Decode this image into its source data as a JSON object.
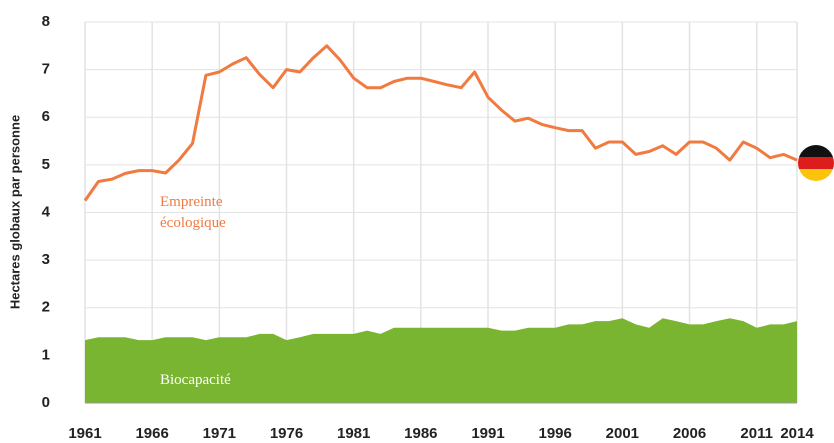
{
  "chart_data": {
    "type": "line",
    "y_label": "Hectares globaux par personne",
    "x": [
      1961,
      1962,
      1963,
      1964,
      1965,
      1966,
      1967,
      1968,
      1969,
      1970,
      1971,
      1972,
      1973,
      1974,
      1975,
      1976,
      1977,
      1978,
      1979,
      1980,
      1981,
      1982,
      1983,
      1984,
      1985,
      1986,
      1987,
      1988,
      1989,
      1990,
      1991,
      1992,
      1993,
      1994,
      1995,
      1996,
      1997,
      1998,
      1999,
      2000,
      2001,
      2002,
      2003,
      2004,
      2005,
      2006,
      2007,
      2008,
      2009,
      2010,
      2011,
      2012,
      2013,
      2014
    ],
    "series": [
      {
        "name": "Empreinte écologique",
        "color": "#f07a3f",
        "fill": false,
        "values": [
          4.25,
          4.65,
          4.7,
          4.82,
          4.88,
          4.88,
          4.83,
          5.1,
          5.45,
          6.88,
          6.95,
          7.12,
          7.25,
          6.9,
          6.62,
          7.0,
          6.95,
          7.25,
          7.5,
          7.2,
          6.82,
          6.62,
          6.62,
          6.75,
          6.82,
          6.82,
          6.75,
          6.68,
          6.62,
          6.95,
          6.42,
          6.15,
          5.92,
          5.98,
          5.85,
          5.78,
          5.72,
          5.72,
          5.35,
          5.48,
          5.48,
          5.22,
          5.28,
          5.4,
          5.22,
          5.48,
          5.48,
          5.35,
          5.1,
          5.48,
          5.35,
          5.15,
          5.22,
          5.1
        ]
      },
      {
        "name": "Biocapacité",
        "color": "#7ab532",
        "fill": true,
        "values": [
          1.32,
          1.38,
          1.38,
          1.38,
          1.32,
          1.32,
          1.38,
          1.38,
          1.38,
          1.32,
          1.38,
          1.38,
          1.38,
          1.45,
          1.45,
          1.32,
          1.38,
          1.45,
          1.45,
          1.45,
          1.45,
          1.52,
          1.45,
          1.58,
          1.58,
          1.58,
          1.58,
          1.58,
          1.58,
          1.58,
          1.58,
          1.52,
          1.52,
          1.58,
          1.58,
          1.58,
          1.65,
          1.65,
          1.72,
          1.72,
          1.78,
          1.65,
          1.58,
          1.78,
          1.72,
          1.65,
          1.65,
          1.72,
          1.78,
          1.72,
          1.58,
          1.65,
          1.65,
          1.72
        ]
      }
    ],
    "xlim": [
      1961,
      2014
    ],
    "xticks": [
      1961,
      1966,
      1971,
      1976,
      1981,
      1986,
      1991,
      1996,
      2001,
      2006,
      2011,
      2014
    ],
    "ylim": [
      0,
      8
    ],
    "yticks": [
      0,
      1,
      2,
      3,
      4,
      5,
      6,
      7,
      8
    ],
    "grid": true
  }
}
